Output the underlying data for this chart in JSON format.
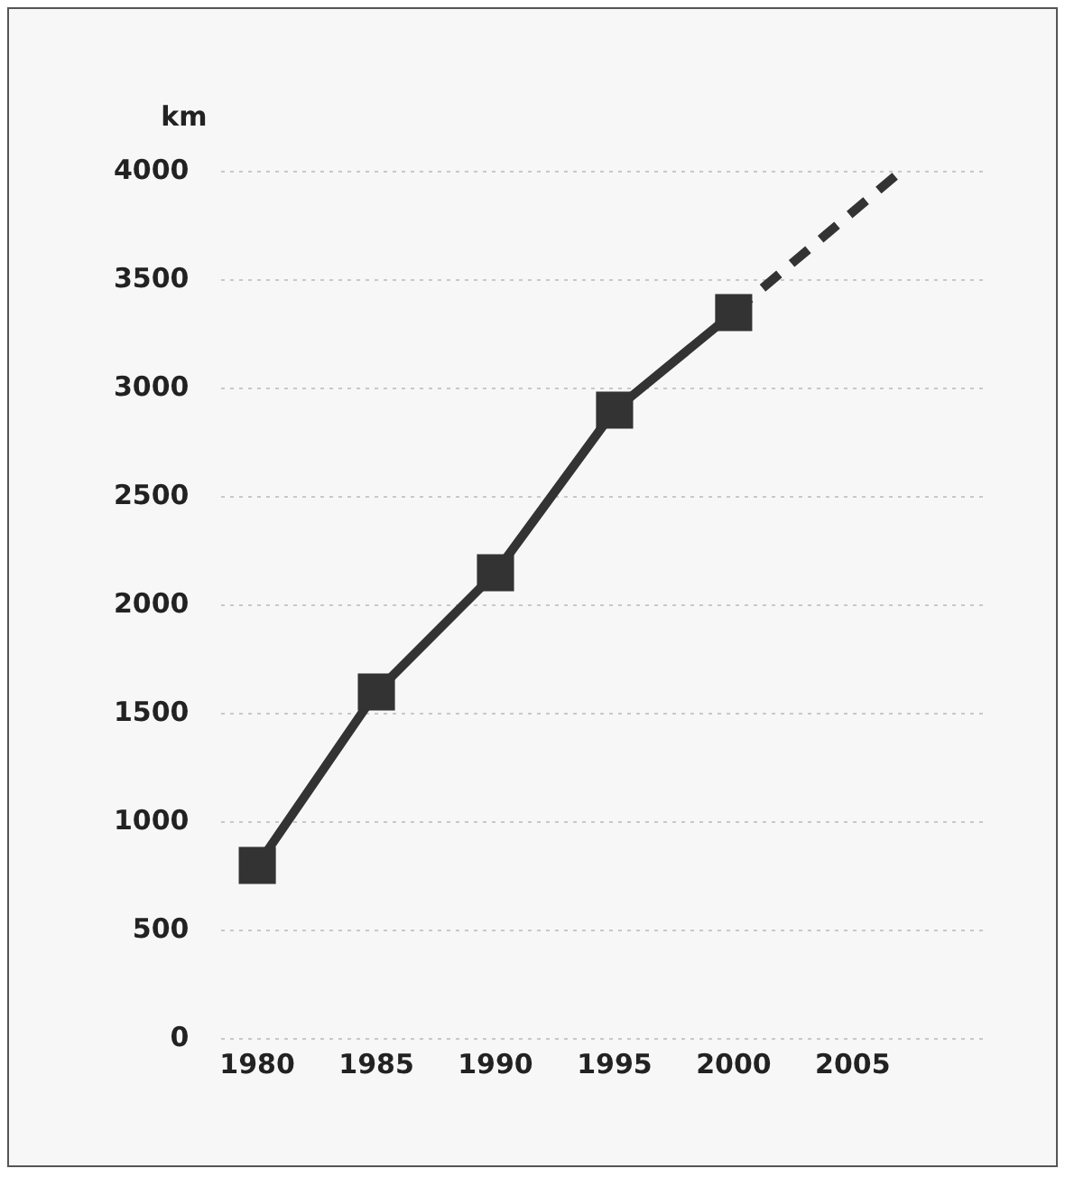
{
  "chart_data": {
    "type": "line",
    "ylabel": "km",
    "xlim": [
      1978.5,
      2010.5
    ],
    "xticks": [
      1980,
      1985,
      1990,
      1995,
      2000,
      2005
    ],
    "ylim": [
      0,
      4000
    ],
    "yticks": [
      0,
      500,
      1000,
      1500,
      2000,
      2500,
      3000,
      3500,
      4000
    ],
    "grid": "y",
    "series": [
      {
        "color": "#333333",
        "x": [
          1980,
          1985,
          1990,
          1995,
          2000
        ],
        "values": [
          800,
          1600,
          2150,
          2900,
          3350
        ],
        "marker": "square",
        "line_style": "solid"
      },
      {
        "color": "#333333",
        "x": [
          2000,
          2007
        ],
        "values": [
          3350,
          4000
        ],
        "marker": "none",
        "line_style": "dashed"
      }
    ]
  }
}
